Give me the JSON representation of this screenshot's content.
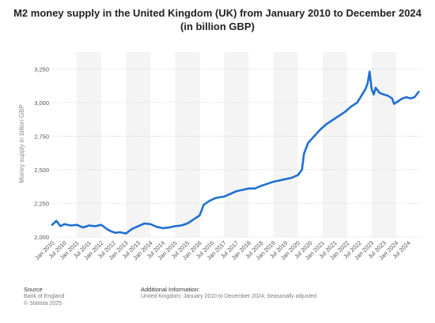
{
  "chart_data": {
    "type": "line",
    "title_line1": "M2 money supply in the United Kingdom (UK) from January 2010 to December 2024",
    "title_line2": "(in billion GBP)",
    "ylabel": "Money supply in billion GBP",
    "xlabel": "",
    "ylim": [
      2000,
      3375
    ],
    "yticks": [
      2000,
      2250,
      2500,
      2750,
      3000,
      3250
    ],
    "ytick_labels": [
      "2,000",
      "2,250",
      "2,500",
      "2,750",
      "3,000",
      "3,250"
    ],
    "xticks": [
      "Jan 2010",
      "Jul 2010",
      "Jan 2011",
      "Jul 2011",
      "Jan 2012",
      "Jul 2012",
      "Jan 2013",
      "Jul 2013",
      "Jan 2014",
      "Jul 2014",
      "Jan 2015",
      "Jul 2015",
      "Jan 2016",
      "Jul 2016",
      "Jan 2017",
      "Jul 2017",
      "Jan 2018",
      "Jul 2018",
      "Jan 2019",
      "Jul 2019",
      "Jan 2020",
      "Jul 2020",
      "Jan 2021",
      "Jul 2021",
      "Jan 2022",
      "Jul 2022",
      "Jan 2023",
      "Jul 2023",
      "Jan 2024",
      "Jul 2024"
    ],
    "grid": true,
    "line_color": "#1f6fd1",
    "series": [
      {
        "name": "",
        "points": [
          [
            "2010-01",
            2090
          ],
          [
            "2010-03",
            2120
          ],
          [
            "2010-05",
            2080
          ],
          [
            "2010-07",
            2095
          ],
          [
            "2010-10",
            2085
          ],
          [
            "2011-01",
            2090
          ],
          [
            "2011-04",
            2070
          ],
          [
            "2011-07",
            2085
          ],
          [
            "2011-10",
            2080
          ],
          [
            "2012-01",
            2090
          ],
          [
            "2012-04",
            2055
          ],
          [
            "2012-06",
            2040
          ],
          [
            "2012-08",
            2030
          ],
          [
            "2012-10",
            2035
          ],
          [
            "2013-01",
            2025
          ],
          [
            "2013-04",
            2060
          ],
          [
            "2013-07",
            2080
          ],
          [
            "2013-10",
            2100
          ],
          [
            "2014-01",
            2095
          ],
          [
            "2014-04",
            2075
          ],
          [
            "2014-07",
            2065
          ],
          [
            "2014-10",
            2070
          ],
          [
            "2015-01",
            2080
          ],
          [
            "2015-04",
            2085
          ],
          [
            "2015-07",
            2100
          ],
          [
            "2015-10",
            2130
          ],
          [
            "2016-01",
            2160
          ],
          [
            "2016-03",
            2240
          ],
          [
            "2016-06",
            2270
          ],
          [
            "2016-09",
            2290
          ],
          [
            "2017-01",
            2300
          ],
          [
            "2017-04",
            2320
          ],
          [
            "2017-07",
            2340
          ],
          [
            "2017-10",
            2350
          ],
          [
            "2018-01",
            2360
          ],
          [
            "2018-04",
            2360
          ],
          [
            "2018-07",
            2380
          ],
          [
            "2018-10",
            2395
          ],
          [
            "2019-01",
            2410
          ],
          [
            "2019-04",
            2420
          ],
          [
            "2019-07",
            2430
          ],
          [
            "2019-10",
            2440
          ],
          [
            "2020-01",
            2460
          ],
          [
            "2020-03",
            2500
          ],
          [
            "2020-04",
            2620
          ],
          [
            "2020-06",
            2700
          ],
          [
            "2020-09",
            2750
          ],
          [
            "2020-12",
            2800
          ],
          [
            "2021-03",
            2840
          ],
          [
            "2021-06",
            2870
          ],
          [
            "2021-09",
            2900
          ],
          [
            "2021-12",
            2930
          ],
          [
            "2022-03",
            2970
          ],
          [
            "2022-06",
            3000
          ],
          [
            "2022-08",
            3050
          ],
          [
            "2022-10",
            3100
          ],
          [
            "2022-11",
            3140
          ],
          [
            "2022-12",
            3230
          ],
          [
            "2023-01",
            3100
          ],
          [
            "2023-02",
            3060
          ],
          [
            "2023-03",
            3110
          ],
          [
            "2023-05",
            3070
          ],
          [
            "2023-07",
            3060
          ],
          [
            "2023-09",
            3050
          ],
          [
            "2023-11",
            3030
          ],
          [
            "2023-12",
            2990
          ],
          [
            "2024-02",
            3010
          ],
          [
            "2024-04",
            3030
          ],
          [
            "2024-06",
            3040
          ],
          [
            "2024-08",
            3030
          ],
          [
            "2024-10",
            3040
          ],
          [
            "2024-12",
            3080
          ]
        ]
      }
    ]
  },
  "footer": {
    "source_label": "Source",
    "source_line1": "Bank of England",
    "source_line2": "© Statista 2025",
    "info_label": "Additional Information:",
    "info_text": "United Kingdom; January 2010 to December 2024; Seasonally adjusted"
  }
}
